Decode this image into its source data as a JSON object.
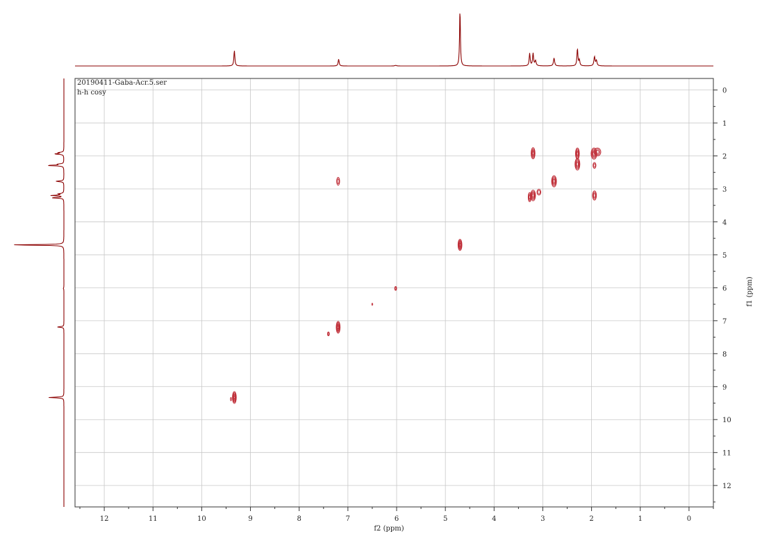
{
  "chart_data": {
    "type": "contour",
    "info_lines": [
      "20190411-Gaba-Acr.5.ser",
      "h-h cosy"
    ],
    "xlabel": "f2 (ppm)",
    "ylabel": "f1 (ppm)",
    "xlim": [
      12.6,
      -0.5
    ],
    "ylim": [
      -0.35,
      12.65
    ],
    "x_ticks": [
      12,
      11,
      10,
      9,
      8,
      7,
      6,
      5,
      4,
      3,
      2,
      1,
      0
    ],
    "y_ticks": [
      0,
      1,
      2,
      3,
      4,
      5,
      6,
      7,
      8,
      9,
      10,
      11,
      12
    ],
    "grid": true,
    "colors": {
      "contour": "#c0303a",
      "spectrum": "#8b0000",
      "grid": "#c8c8c8",
      "axis": "#333333"
    },
    "projection_peaks": [
      {
        "ppm": 9.33,
        "height": 0.27,
        "width": 0.012
      },
      {
        "ppm": 7.19,
        "height": 0.12,
        "width": 0.012
      },
      {
        "ppm": 6.02,
        "height": 0.01,
        "width": 0.02
      },
      {
        "ppm": 4.7,
        "height": 1.0,
        "width": 0.01
      },
      {
        "ppm": 3.27,
        "height": 0.22,
        "width": 0.012
      },
      {
        "ppm": 3.2,
        "height": 0.22,
        "width": 0.012
      },
      {
        "ppm": 3.15,
        "height": 0.09,
        "width": 0.015
      },
      {
        "ppm": 2.77,
        "height": 0.14,
        "width": 0.014
      },
      {
        "ppm": 2.29,
        "height": 0.3,
        "width": 0.012
      },
      {
        "ppm": 2.25,
        "height": 0.1,
        "width": 0.012
      },
      {
        "ppm": 1.94,
        "height": 0.16,
        "width": 0.014
      },
      {
        "ppm": 1.9,
        "height": 0.09,
        "width": 0.014
      }
    ],
    "cross_peaks": [
      {
        "f2": 3.2,
        "f1": 1.92,
        "rx": 0.04,
        "ry": 0.17,
        "levels": 4
      },
      {
        "f2": 2.29,
        "f1": 1.93,
        "rx": 0.04,
        "ry": 0.17,
        "levels": 4
      },
      {
        "f2": 2.29,
        "f1": 2.25,
        "rx": 0.05,
        "ry": 0.18,
        "levels": 4
      },
      {
        "f2": 1.95,
        "f1": 1.93,
        "rx": 0.06,
        "ry": 0.17,
        "levels": 4
      },
      {
        "f2": 1.88,
        "f1": 1.88,
        "rx": 0.07,
        "ry": 0.12,
        "levels": 3
      },
      {
        "f2": 1.94,
        "f1": 2.29,
        "rx": 0.03,
        "ry": 0.09,
        "levels": 2
      },
      {
        "f2": 7.2,
        "f1": 2.77,
        "rx": 0.03,
        "ry": 0.12,
        "levels": 2
      },
      {
        "f2": 2.77,
        "f1": 2.77,
        "rx": 0.05,
        "ry": 0.17,
        "levels": 4
      },
      {
        "f2": 3.27,
        "f1": 3.25,
        "rx": 0.03,
        "ry": 0.14,
        "levels": 3
      },
      {
        "f2": 3.2,
        "f1": 3.2,
        "rx": 0.05,
        "ry": 0.16,
        "levels": 4
      },
      {
        "f2": 3.08,
        "f1": 3.1,
        "rx": 0.04,
        "ry": 0.09,
        "levels": 2
      },
      {
        "f2": 1.94,
        "f1": 3.2,
        "rx": 0.04,
        "ry": 0.14,
        "levels": 3
      },
      {
        "f2": 4.7,
        "f1": 4.7,
        "rx": 0.04,
        "ry": 0.17,
        "levels": 5
      },
      {
        "f2": 6.02,
        "f1": 6.02,
        "rx": 0.02,
        "ry": 0.06,
        "levels": 2
      },
      {
        "f2": 6.5,
        "f1": 6.5,
        "rx": 0.01,
        "ry": 0.03,
        "levels": 1
      },
      {
        "f2": 7.2,
        "f1": 7.2,
        "rx": 0.04,
        "ry": 0.18,
        "levels": 5
      },
      {
        "f2": 7.4,
        "f1": 7.4,
        "rx": 0.02,
        "ry": 0.06,
        "levels": 2
      },
      {
        "f2": 9.33,
        "f1": 9.33,
        "rx": 0.04,
        "ry": 0.18,
        "levels": 5
      },
      {
        "f2": 9.4,
        "f1": 9.38,
        "rx": 0.01,
        "ry": 0.05,
        "levels": 1
      }
    ]
  }
}
